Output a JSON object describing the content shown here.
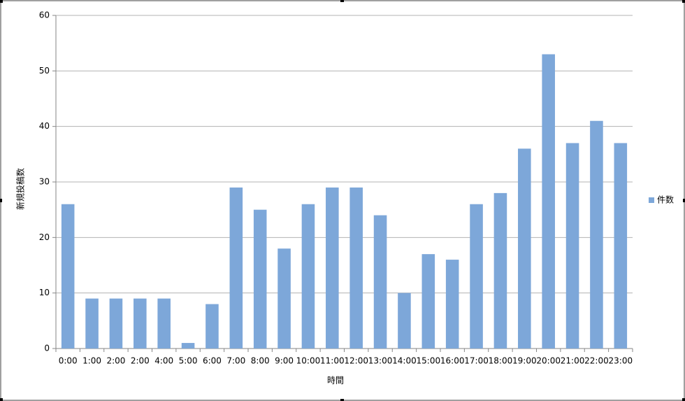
{
  "chart_data": {
    "type": "bar",
    "y_label": "新規投稿数",
    "x_label": "時間",
    "categories": [
      "0:00",
      "1:00",
      "2:00",
      "2:00",
      "4:00",
      "5:00",
      "6:00",
      "7:00",
      "8:00",
      "9:00",
      "10:00",
      "11:00",
      "12:00",
      "13:00",
      "14:00",
      "15:00",
      "16:00",
      "17:00",
      "18:00",
      "19:00",
      "20:00",
      "21:00",
      "22:00",
      "23:00"
    ],
    "series": [
      {
        "name": "件数",
        "color": "#7da7d9",
        "values": [
          26,
          9,
          9,
          9,
          9,
          1,
          8,
          29,
          25,
          18,
          26,
          29,
          29,
          24,
          10,
          17,
          16,
          26,
          28,
          36,
          53,
          37,
          41,
          37
        ]
      }
    ],
    "ylim": [
      0,
      60
    ],
    "yticks": [
      0,
      10,
      20,
      30,
      40,
      50,
      60
    ],
    "grid": true,
    "legend": "right"
  }
}
